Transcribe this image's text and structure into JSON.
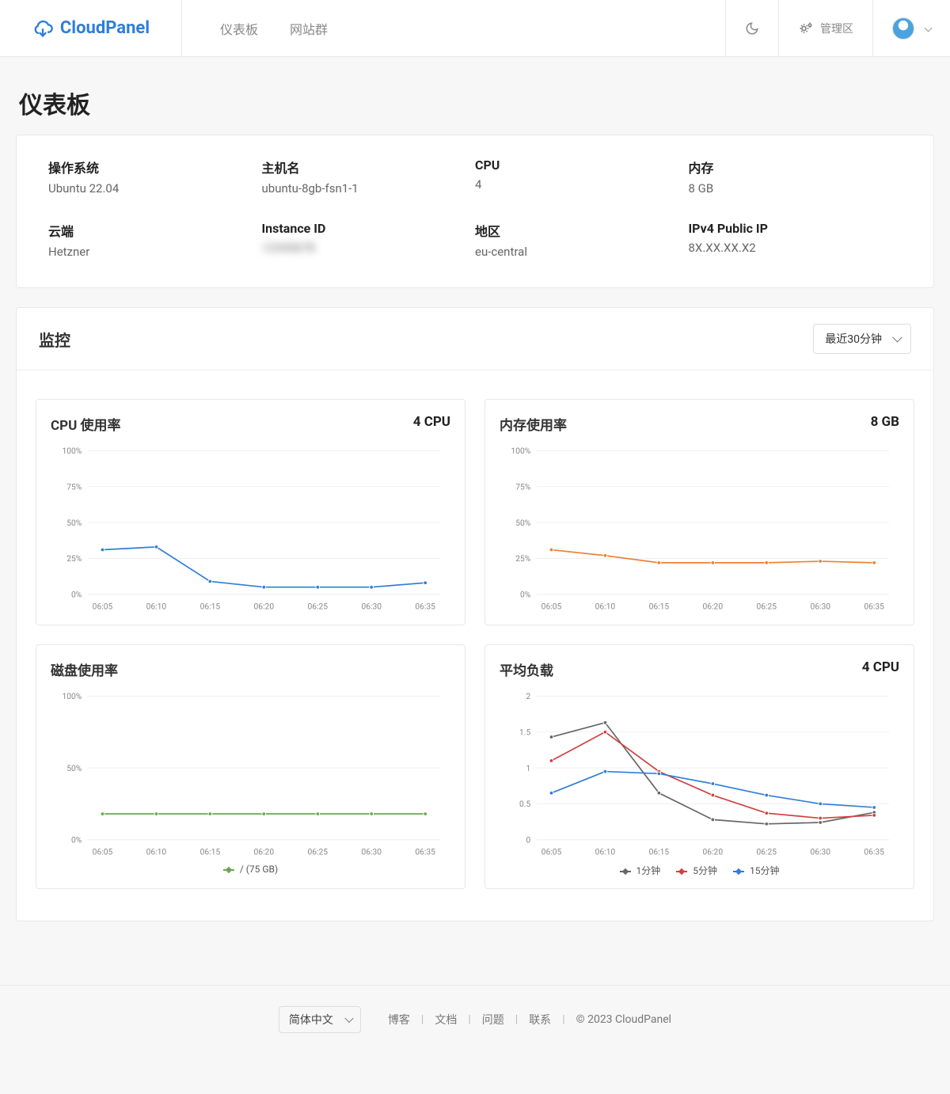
{
  "brand": "CloudPanel",
  "nav": {
    "dashboard": "仪表板",
    "sites": "网站群"
  },
  "admin_area": "管理区",
  "page_title": "仪表板",
  "info": {
    "os": {
      "label": "操作系统",
      "value": "Ubuntu 22.04"
    },
    "hostname": {
      "label": "主机名",
      "value": "ubuntu-8gb-fsn1-1"
    },
    "cpu": {
      "label": "CPU",
      "value": "4"
    },
    "memory": {
      "label": "内存",
      "value": "8 GB"
    },
    "cloud": {
      "label": "云端",
      "value": "Hetzner"
    },
    "instance": {
      "label": "Instance ID",
      "value": "12345678"
    },
    "region": {
      "label": "地区",
      "value": "eu-central"
    },
    "ip": {
      "label": "IPv4 Public IP",
      "value": "8X.XX.XX.X2"
    }
  },
  "monitor": {
    "title": "监控",
    "range_selected": "最近30分钟"
  },
  "charts": {
    "x_labels": [
      "06:05",
      "06:10",
      "06:15",
      "06:20",
      "06:25",
      "06:30",
      "06:35"
    ],
    "cpu": {
      "title": "CPU 使用率",
      "subtitle": "4 CPU",
      "type": "line",
      "ylim": [
        0,
        100
      ],
      "ytick_step": 25,
      "y_suffix": "%",
      "color": "#2f7ed8",
      "values": [
        31,
        33,
        9,
        5,
        5,
        5,
        8
      ]
    },
    "memory": {
      "title": "内存使用率",
      "subtitle": "8 GB",
      "type": "line",
      "ylim": [
        0,
        100
      ],
      "ytick_step": 25,
      "y_suffix": "%",
      "color": "#f08030",
      "values": [
        31,
        27,
        22,
        22,
        22,
        23,
        22
      ]
    },
    "disk": {
      "title": "磁盘使用率",
      "subtitle": "",
      "type": "line",
      "ylim": [
        0,
        100
      ],
      "ytick_step": 50,
      "y_suffix": "%",
      "color": "#6aa84f",
      "values": [
        18,
        18,
        18,
        18,
        18,
        18,
        18
      ],
      "legend": [
        {
          "label": "/ (75 GB)",
          "color": "#6aa84f"
        }
      ]
    },
    "load": {
      "title": "平均负载",
      "subtitle": "4 CPU",
      "type": "multiline",
      "ylim": [
        0,
        2
      ],
      "ytick_step": 0.5,
      "y_suffix": "",
      "series": [
        {
          "label": "1分钟",
          "color": "#666666",
          "values": [
            1.43,
            1.63,
            0.65,
            0.28,
            0.22,
            0.24,
            0.38
          ]
        },
        {
          "label": "5分钟",
          "color": "#d04040",
          "values": [
            1.1,
            1.5,
            0.95,
            0.62,
            0.37,
            0.3,
            0.34
          ]
        },
        {
          "label": "15分钟",
          "color": "#2f7ed8",
          "values": [
            0.65,
            0.95,
            0.92,
            0.78,
            0.62,
            0.5,
            0.45
          ]
        }
      ]
    },
    "grid_color": "#eeeeee",
    "axis_font": 11,
    "axis_color": "#888888",
    "marker_radius": 2.5,
    "line_width": 1.8
  },
  "footer": {
    "lang": "简体中文",
    "links": {
      "blog": "博客",
      "docs": "文档",
      "issues": "问题",
      "contact": "联系"
    },
    "copyright": "© 2023  CloudPanel"
  }
}
